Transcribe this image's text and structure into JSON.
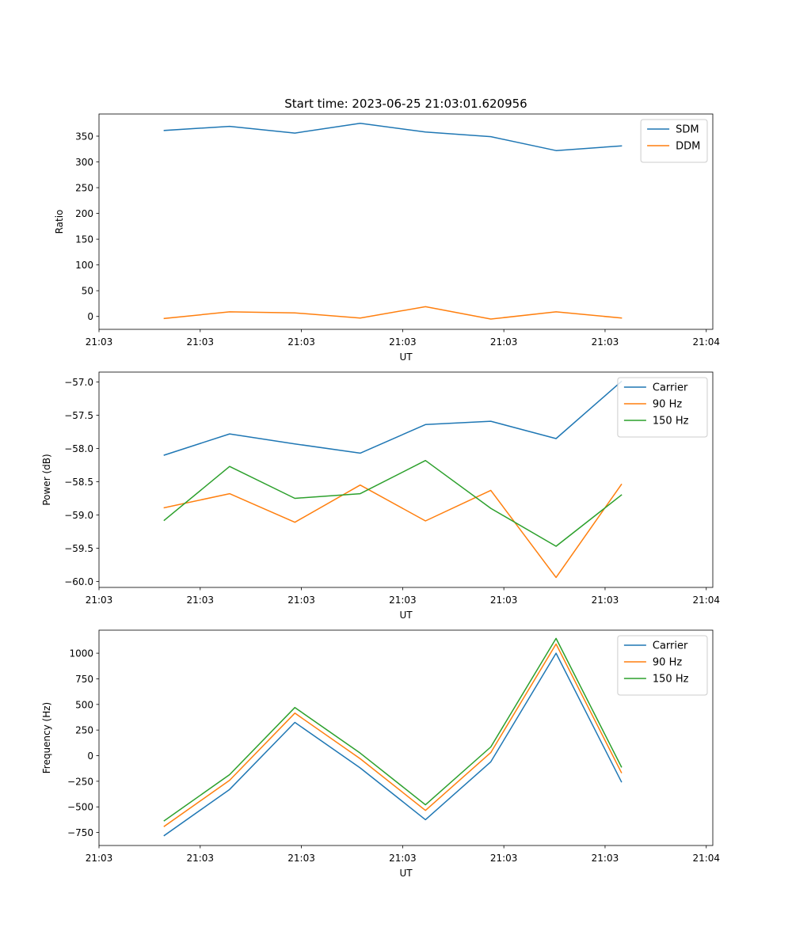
{
  "figure": {
    "title": "Start time: 2023-06-25 21:03:01.620956"
  },
  "chart_data": [
    {
      "type": "line",
      "title": "Start time: 2023-06-25 21:03:01.620956",
      "xlabel": "UT",
      "ylabel": "Ratio",
      "x": [
        1,
        2,
        3,
        4,
        5,
        6,
        7,
        8
      ],
      "xlim": [
        0,
        9.4
      ],
      "xticks": [
        {
          "pos": 0.0,
          "label": "21:03"
        },
        {
          "pos": 1.55,
          "label": "21:03"
        },
        {
          "pos": 3.1,
          "label": "21:03"
        },
        {
          "pos": 4.65,
          "label": "21:03"
        },
        {
          "pos": 6.2,
          "label": "21:03"
        },
        {
          "pos": 7.75,
          "label": "21:03"
        },
        {
          "pos": 9.3,
          "label": "21:04"
        }
      ],
      "ylim": [
        -25,
        393
      ],
      "yticks": [
        0,
        50,
        100,
        150,
        200,
        250,
        300,
        350
      ],
      "ytick_labels": [
        "0",
        "50",
        "100",
        "150",
        "200",
        "250",
        "300",
        "350"
      ],
      "legend_position": "upper right",
      "series": [
        {
          "name": "SDM",
          "color": "#1f77b4",
          "values": [
            361,
            369,
            356,
            375,
            358,
            349,
            322,
            331
          ]
        },
        {
          "name": "DDM",
          "color": "#ff7f0e",
          "values": [
            -4,
            9,
            7,
            -3,
            19,
            -5,
            9,
            -3
          ]
        }
      ]
    },
    {
      "type": "line",
      "xlabel": "UT",
      "ylabel": "Power (dB)",
      "x": [
        1,
        2,
        3,
        4,
        5,
        6,
        7,
        8
      ],
      "xlim": [
        0,
        9.4
      ],
      "xticks": [
        {
          "pos": 0.0,
          "label": "21:03"
        },
        {
          "pos": 1.55,
          "label": "21:03"
        },
        {
          "pos": 3.1,
          "label": "21:03"
        },
        {
          "pos": 4.65,
          "label": "21:03"
        },
        {
          "pos": 6.2,
          "label": "21:03"
        },
        {
          "pos": 7.75,
          "label": "21:03"
        },
        {
          "pos": 9.3,
          "label": "21:04"
        }
      ],
      "ylim": [
        -60.09,
        -56.85
      ],
      "yticks": [
        -60.0,
        -59.5,
        -59.0,
        -58.5,
        -58.0,
        -57.5,
        -57.0
      ],
      "ytick_labels": [
        "−60.0",
        "−59.5",
        "−59.0",
        "−58.5",
        "−58.0",
        "−57.5",
        "−57.0"
      ],
      "legend_position": "upper right",
      "series": [
        {
          "name": "Carrier",
          "color": "#1f77b4",
          "values": [
            -58.1,
            -57.78,
            -57.93,
            -58.07,
            -57.64,
            -57.59,
            -57.85,
            -56.99
          ]
        },
        {
          "name": "90 Hz",
          "color": "#ff7f0e",
          "values": [
            -58.89,
            -58.68,
            -59.11,
            -58.55,
            -59.09,
            -58.63,
            -59.94,
            -58.54
          ]
        },
        {
          "name": "150 Hz",
          "color": "#2ca02c",
          "values": [
            -59.08,
            -58.27,
            -58.75,
            -58.68,
            -58.18,
            -58.9,
            -59.47,
            -58.7
          ]
        }
      ]
    },
    {
      "type": "line",
      "xlabel": "UT",
      "ylabel": "Frequency (Hz)",
      "x": [
        1,
        2,
        3,
        4,
        5,
        6,
        7,
        8
      ],
      "xlim": [
        0,
        9.4
      ],
      "xticks": [
        {
          "pos": 0.0,
          "label": "21:03"
        },
        {
          "pos": 1.55,
          "label": "21:03"
        },
        {
          "pos": 3.1,
          "label": "21:03"
        },
        {
          "pos": 4.65,
          "label": "21:03"
        },
        {
          "pos": 6.2,
          "label": "21:03"
        },
        {
          "pos": 7.75,
          "label": "21:03"
        },
        {
          "pos": 9.3,
          "label": "21:04"
        }
      ],
      "ylim": [
        -877,
        1225
      ],
      "yticks": [
        -750,
        -500,
        -250,
        0,
        250,
        500,
        750,
        1000
      ],
      "ytick_labels": [
        "−750",
        "−500",
        "−250",
        "0",
        "250",
        "500",
        "750",
        "1000"
      ],
      "legend_position": "upper right",
      "series": [
        {
          "name": "Carrier",
          "color": "#1f77b4",
          "values": [
            -780,
            -330,
            325,
            -120,
            -625,
            -60,
            1000,
            -255
          ]
        },
        {
          "name": "90 Hz",
          "color": "#ff7f0e",
          "values": [
            -690,
            -240,
            415,
            -30,
            -535,
            30,
            1090,
            -165
          ]
        },
        {
          "name": "150 Hz",
          "color": "#2ca02c",
          "values": [
            -635,
            -185,
            470,
            25,
            -480,
            85,
            1145,
            -110
          ]
        }
      ]
    }
  ]
}
